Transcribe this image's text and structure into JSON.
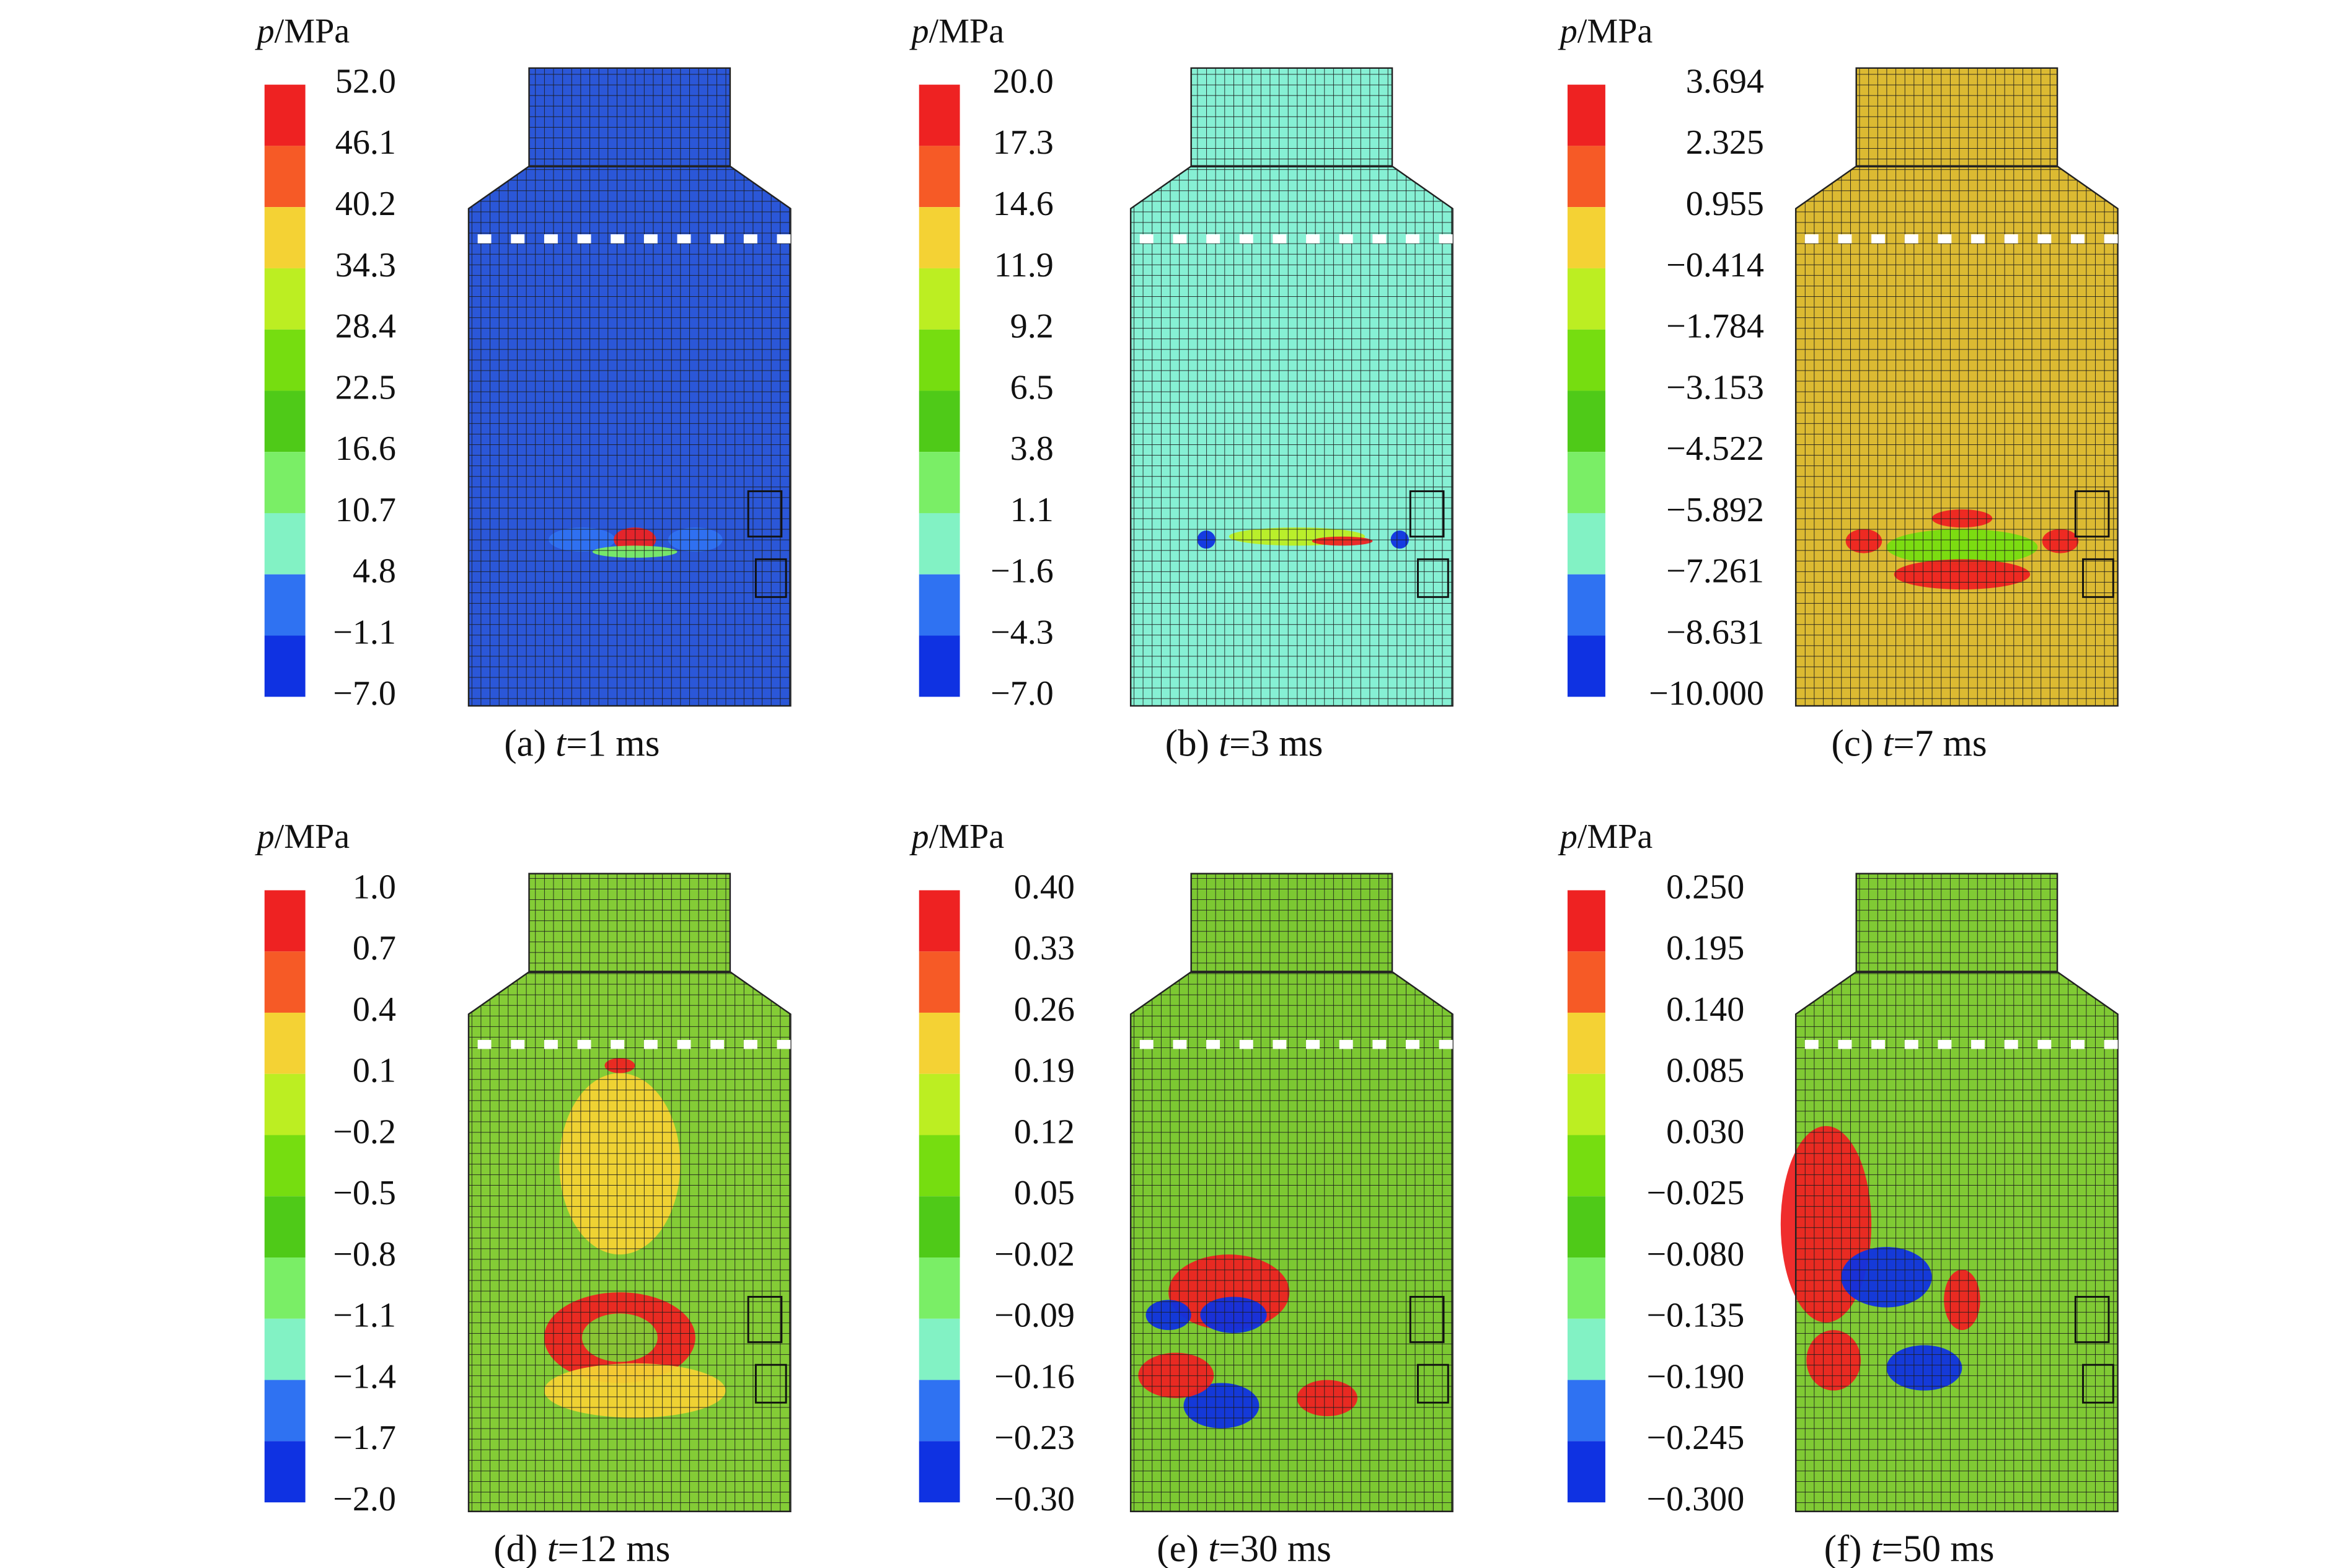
{
  "colorbar_colors": [
    "#ee2222",
    "#f65a26",
    "#f4d234",
    "#bcee22",
    "#76dd10",
    "#4fca18",
    "#7aee66",
    "#82f2c4",
    "#2f72f2",
    "#0f32e2"
  ],
  "panels": [
    {
      "legend_var": "p",
      "legend_unit": "/MPa",
      "ticks": [
        "52.0",
        "46.1",
        "40.2",
        "34.3",
        "28.4",
        "22.5",
        "16.6",
        "10.7",
        "4.8",
        "−1.1",
        "−7.0"
      ],
      "caption_label": "(a)",
      "caption_var": "t",
      "caption_value": "=1 ms",
      "field_color": "#2b57d8"
    },
    {
      "legend_var": "p",
      "legend_unit": "/MPa",
      "ticks": [
        "20.0",
        "17.3",
        "14.6",
        "11.9",
        "9.2",
        "6.5",
        "3.8",
        "1.1",
        "−1.6",
        "−4.3",
        "−7.0"
      ],
      "caption_label": "(b)",
      "caption_var": "t",
      "caption_value": "=3 ms",
      "field_color": "#86f0d4"
    },
    {
      "legend_var": "p",
      "legend_unit": "/MPa",
      "ticks": [
        "3.694",
        "2.325",
        "0.955",
        "−0.414",
        "−1.784",
        "−3.153",
        "−4.522",
        "−5.892",
        "−7.261",
        "−8.631",
        "−10.000"
      ],
      "caption_label": "(c)",
      "caption_var": "t",
      "caption_value": "=7 ms",
      "field_color": "#dcba32"
    },
    {
      "legend_var": "p",
      "legend_unit": "/MPa",
      "ticks": [
        "1.0",
        "0.7",
        "0.4",
        "0.1",
        "−0.2",
        "−0.5",
        "−0.8",
        "−1.1",
        "−1.4",
        "−1.7",
        "−2.0"
      ],
      "caption_label": "(d)",
      "caption_var": "t",
      "caption_value": "=12 ms",
      "field_color": "#84cc36"
    },
    {
      "legend_var": "p",
      "legend_unit": "/MPa",
      "ticks": [
        "0.40",
        "0.33",
        "0.26",
        "0.19",
        "0.12",
        "0.05",
        "−0.02",
        "−0.09",
        "−0.16",
        "−0.23",
        "−0.30"
      ],
      "caption_label": "(e)",
      "caption_var": "t",
      "caption_value": "=30 ms",
      "field_color": "#7cc832"
    },
    {
      "legend_var": "p",
      "legend_unit": "/MPa",
      "ticks": [
        "0.250",
        "0.195",
        "0.140",
        "0.085",
        "0.030",
        "−0.025",
        "−0.080",
        "−0.135",
        "−0.190",
        "−0.245",
        "−0.300"
      ],
      "caption_label": "(f)",
      "caption_var": "t",
      "caption_value": "=50 ms",
      "field_color": "#80ca34"
    }
  ]
}
